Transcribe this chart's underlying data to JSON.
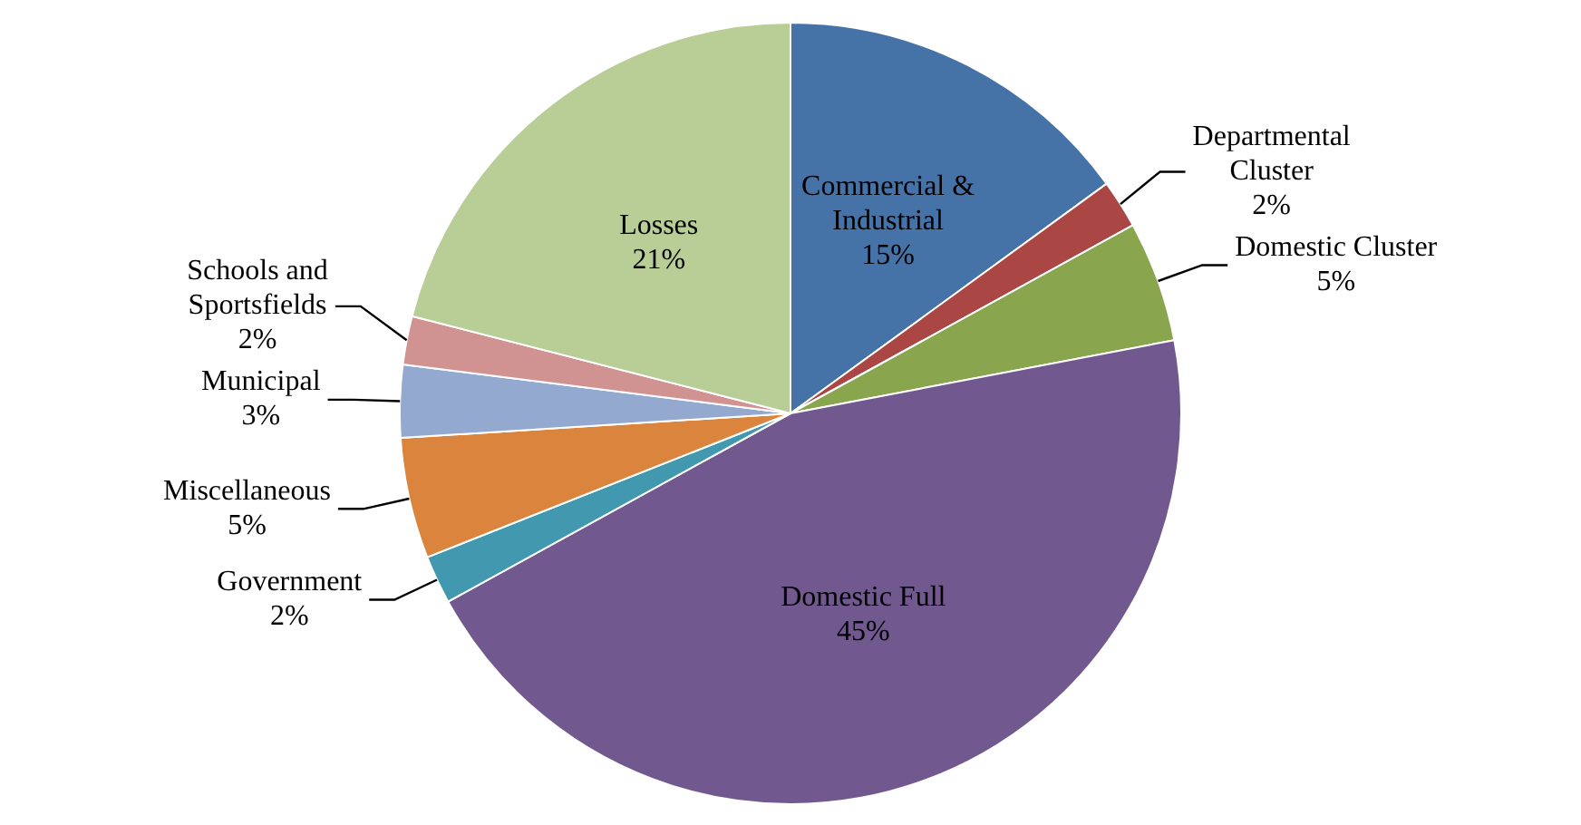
{
  "chart_data": {
    "type": "pie",
    "categories": [
      "Commercial & Industrial",
      "Departmental Cluster",
      "Domestic Cluster",
      "Domestic Full",
      "Government",
      "Miscellaneous",
      "Municipal",
      "Schools and Sportsfields",
      "Losses"
    ],
    "values": [
      15,
      2,
      5,
      45,
      2,
      5,
      3,
      2,
      21
    ],
    "colors": [
      "#4572a7",
      "#aa4643",
      "#89a54e",
      "#71588f",
      "#4198af",
      "#db843d",
      "#93a9cf",
      "#d19392",
      "#b9cd96"
    ],
    "value_labels": [
      "15%",
      "2%",
      "5%",
      "45%",
      "2%",
      "5%",
      "3%",
      "2%",
      "21%"
    ],
    "legend": false
  }
}
